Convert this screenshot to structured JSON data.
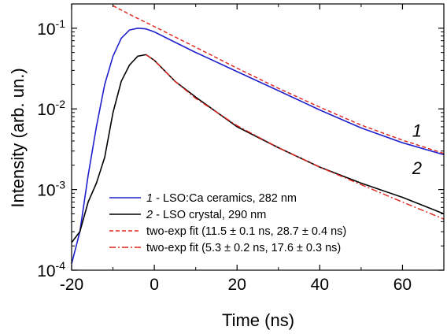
{
  "chart_data": {
    "type": "line",
    "title": "",
    "xlabel": "Time (ns)",
    "ylabel": "Intensity (arb. un.)",
    "xlim": [
      -20,
      70
    ],
    "ylim": [
      0.0001,
      0.2
    ],
    "y_scale": "log",
    "x_ticks": [
      {
        "value": -20,
        "label": "-20"
      },
      {
        "value": 0,
        "label": "0"
      },
      {
        "value": 20,
        "label": "20"
      },
      {
        "value": 40,
        "label": "40"
      },
      {
        "value": 60,
        "label": "60"
      }
    ],
    "y_ticks": [
      {
        "value": 0.0001,
        "base": "10",
        "exp": "-4"
      },
      {
        "value": 0.001,
        "base": "10",
        "exp": "-3"
      },
      {
        "value": 0.01,
        "base": "10",
        "exp": "-2"
      },
      {
        "value": 0.1,
        "base": "10",
        "exp": "-1"
      }
    ],
    "grid": false,
    "legend_position": "bottom-left",
    "series": [
      {
        "name": "1 - LSO:Ca ceramics, 282 nm",
        "legend_num": "1",
        "legend_rest": " - LSO:Ca ceramics, 282 nm",
        "color": "#1f1fcc",
        "style": "solid",
        "x": [
          -20,
          -18,
          -16,
          -14,
          -12,
          -10,
          -8,
          -6,
          -4,
          -2,
          0,
          5,
          10,
          20,
          30,
          40,
          50,
          60,
          70
        ],
        "y": [
          0.00012,
          0.0003,
          0.0015,
          0.006,
          0.02,
          0.045,
          0.075,
          0.095,
          0.1,
          0.098,
          0.09,
          0.067,
          0.05,
          0.029,
          0.0168,
          0.0097,
          0.0058,
          0.0038,
          0.0027
        ]
      },
      {
        "name": "2 - LSO crystal, 290 nm",
        "legend_num": "2",
        "legend_rest": " - LSO crystal, 290 nm",
        "color": "#000000",
        "style": "solid",
        "x": [
          -20,
          -18,
          -16,
          -14,
          -12,
          -10,
          -8,
          -6,
          -4,
          -2,
          0,
          5,
          10,
          20,
          30,
          40,
          50,
          60,
          70
        ],
        "y": [
          0.00022,
          0.0003,
          0.0007,
          0.0012,
          0.0025,
          0.009,
          0.022,
          0.035,
          0.045,
          0.047,
          0.04,
          0.022,
          0.014,
          0.006,
          0.0033,
          0.0019,
          0.0012,
          0.0008,
          0.0005
        ]
      },
      {
        "name": "two-exp fit (11.5 ± 0.1 ns, 28.7 ± 0.4 ns)",
        "color": "#e0201a",
        "style": "dashed",
        "x": [
          -10,
          -5,
          0,
          5,
          10,
          20,
          30,
          40,
          50,
          60,
          70
        ],
        "y": [
          0.19,
          0.14,
          0.105,
          0.078,
          0.058,
          0.032,
          0.018,
          0.0105,
          0.0063,
          0.0041,
          0.0028
        ]
      },
      {
        "name": "two-exp fit (5.3 ± 0.2 ns, 17.6 ± 0.3 ns)",
        "color": "#e0201a",
        "style": "dashdot",
        "x": [
          -2,
          0,
          5,
          10,
          20,
          30,
          40,
          50,
          60,
          70
        ],
        "y": [
          0.047,
          0.04,
          0.022,
          0.0135,
          0.0062,
          0.0033,
          0.0019,
          0.00115,
          0.0007,
          0.00043
        ]
      }
    ],
    "annotations": [
      {
        "text": "1",
        "x": 63.5,
        "y": 0.0045
      },
      {
        "text": "2",
        "x": 63.5,
        "y": 0.00155
      }
    ]
  }
}
